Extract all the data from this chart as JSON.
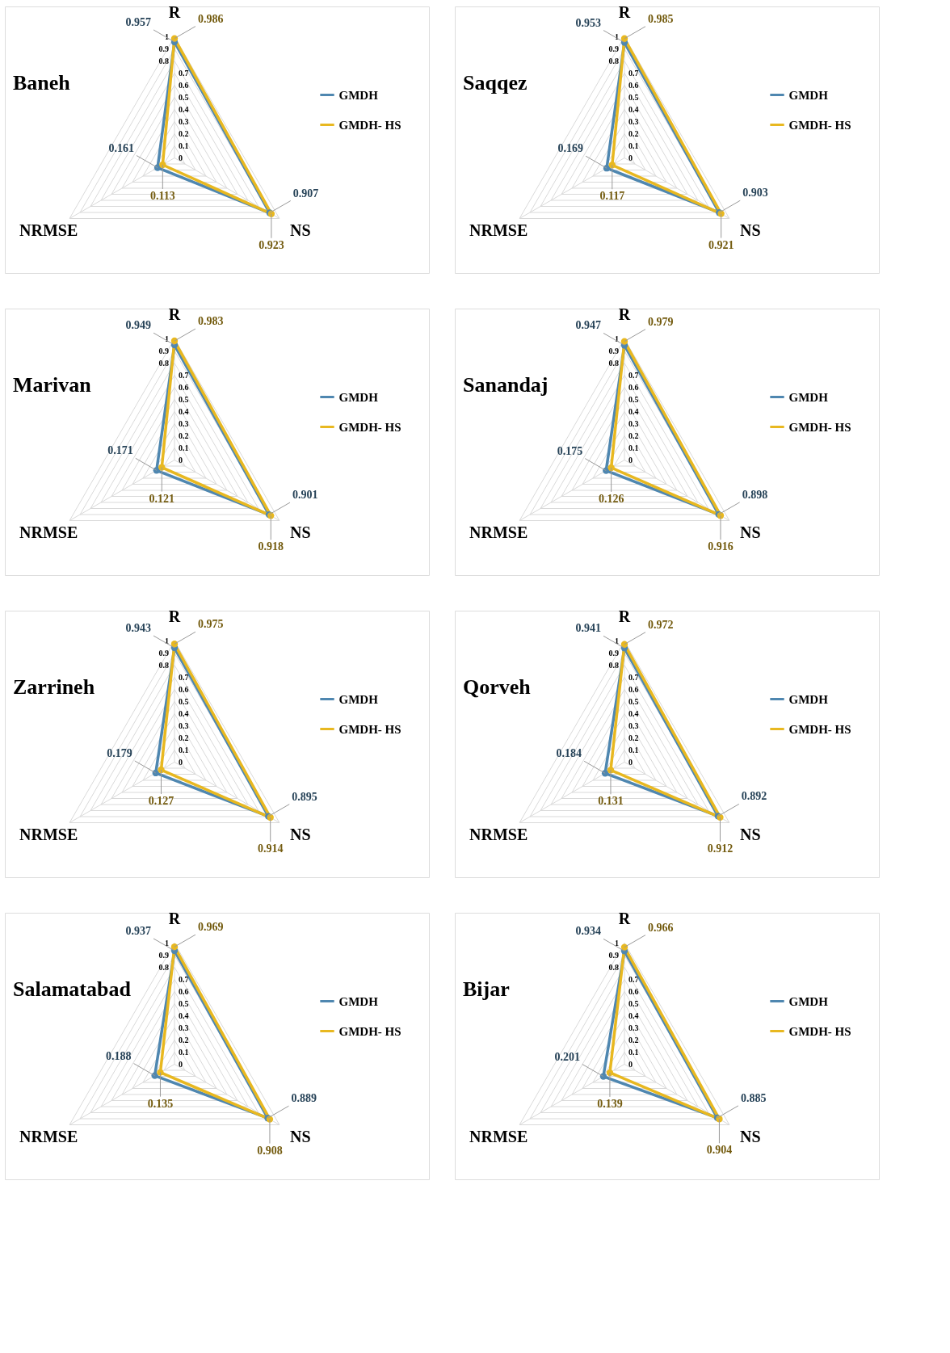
{
  "chart_data": [
    {
      "type": "radar",
      "title": "Baneh",
      "categories": [
        "R",
        "NS",
        "NRMSE"
      ],
      "ylim": [
        0,
        1
      ],
      "yticks": [
        0,
        0.1,
        0.2,
        0.3,
        0.4,
        0.5,
        0.6,
        0.7,
        0.8,
        0.9,
        1
      ],
      "grid": true,
      "legend": "right",
      "marker": "circle",
      "data_labels": true,
      "series": [
        {
          "name": "GMDH",
          "color": "#4f87b0",
          "values": [
            0.957,
            0.907,
            0.161
          ]
        },
        {
          "name": "GMDH- HS",
          "color": "#e8b820",
          "values": [
            0.986,
            0.923,
            0.113
          ]
        }
      ]
    },
    {
      "type": "radar",
      "title": "Saqqez",
      "categories": [
        "R",
        "NS",
        "NRMSE"
      ],
      "ylim": [
        0,
        1
      ],
      "yticks": [
        0,
        0.1,
        0.2,
        0.3,
        0.4,
        0.5,
        0.6,
        0.7,
        0.8,
        0.9,
        1
      ],
      "grid": true,
      "legend": "right",
      "marker": "circle",
      "data_labels": true,
      "series": [
        {
          "name": "GMDH",
          "color": "#4f87b0",
          "values": [
            0.953,
            0.903,
            0.169
          ]
        },
        {
          "name": "GMDH- HS",
          "color": "#e8b820",
          "values": [
            0.985,
            0.921,
            0.117
          ]
        }
      ]
    },
    {
      "type": "radar",
      "title": "Marivan",
      "categories": [
        "R",
        "NS",
        "NRMSE"
      ],
      "ylim": [
        0,
        1
      ],
      "yticks": [
        0,
        0.1,
        0.2,
        0.3,
        0.4,
        0.5,
        0.6,
        0.7,
        0.8,
        0.9,
        1
      ],
      "grid": true,
      "legend": "right",
      "marker": "circle",
      "data_labels": true,
      "series": [
        {
          "name": "GMDH",
          "color": "#4f87b0",
          "values": [
            0.949,
            0.901,
            0.171
          ]
        },
        {
          "name": "GMDH- HS",
          "color": "#e8b820",
          "values": [
            0.983,
            0.918,
            0.121
          ]
        }
      ]
    },
    {
      "type": "radar",
      "title": "Sanandaj",
      "categories": [
        "R",
        "NS",
        "NRMSE"
      ],
      "ylim": [
        0,
        1
      ],
      "yticks": [
        0,
        0.1,
        0.2,
        0.3,
        0.4,
        0.5,
        0.6,
        0.7,
        0.8,
        0.9,
        1
      ],
      "grid": true,
      "legend": "right",
      "marker": "circle",
      "data_labels": true,
      "series": [
        {
          "name": "GMDH",
          "color": "#4f87b0",
          "values": [
            0.947,
            0.898,
            0.175
          ]
        },
        {
          "name": "GMDH- HS",
          "color": "#e8b820",
          "values": [
            0.979,
            0.916,
            0.126
          ]
        }
      ]
    },
    {
      "type": "radar",
      "title": "Zarrineh",
      "categories": [
        "R",
        "NS",
        "NRMSE"
      ],
      "ylim": [
        0,
        1
      ],
      "yticks": [
        0,
        0.1,
        0.2,
        0.3,
        0.4,
        0.5,
        0.6,
        0.7,
        0.8,
        0.9,
        1
      ],
      "grid": true,
      "legend": "right",
      "marker": "circle",
      "data_labels": true,
      "series": [
        {
          "name": "GMDH",
          "color": "#4f87b0",
          "values": [
            0.943,
            0.895,
            0.179
          ]
        },
        {
          "name": "GMDH- HS",
          "color": "#e8b820",
          "values": [
            0.975,
            0.914,
            0.127
          ]
        }
      ]
    },
    {
      "type": "radar",
      "title": "Qorveh",
      "categories": [
        "R",
        "NS",
        "NRMSE"
      ],
      "ylim": [
        0,
        1
      ],
      "yticks": [
        0,
        0.1,
        0.2,
        0.3,
        0.4,
        0.5,
        0.6,
        0.7,
        0.8,
        0.9,
        1
      ],
      "grid": true,
      "legend": "right",
      "marker": "circle",
      "data_labels": true,
      "series": [
        {
          "name": "GMDH",
          "color": "#4f87b0",
          "values": [
            0.941,
            0.892,
            0.184
          ]
        },
        {
          "name": "GMDH- HS",
          "color": "#e8b820",
          "values": [
            0.972,
            0.912,
            0.131
          ]
        }
      ]
    },
    {
      "type": "radar",
      "title": "Salamatabad",
      "categories": [
        "R",
        "NS",
        "NRMSE"
      ],
      "ylim": [
        0,
        1
      ],
      "yticks": [
        0,
        0.1,
        0.2,
        0.3,
        0.4,
        0.5,
        0.6,
        0.7,
        0.8,
        0.9,
        1
      ],
      "grid": true,
      "legend": "right",
      "marker": "circle",
      "data_labels": true,
      "series": [
        {
          "name": "GMDH",
          "color": "#4f87b0",
          "values": [
            0.937,
            0.889,
            0.188
          ]
        },
        {
          "name": "GMDH- HS",
          "color": "#e8b820",
          "values": [
            0.969,
            0.908,
            0.135
          ]
        }
      ]
    },
    {
      "type": "radar",
      "title": "Bijar",
      "categories": [
        "R",
        "NS",
        "NRMSE"
      ],
      "ylim": [
        0,
        1
      ],
      "yticks": [
        0,
        0.1,
        0.2,
        0.3,
        0.4,
        0.5,
        0.6,
        0.7,
        0.8,
        0.9,
        1
      ],
      "grid": true,
      "legend": "right",
      "marker": "circle",
      "data_labels": true,
      "series": [
        {
          "name": "GMDH",
          "color": "#4f87b0",
          "values": [
            0.934,
            0.885,
            0.201
          ]
        },
        {
          "name": "GMDH- HS",
          "color": "#e8b820",
          "values": [
            0.966,
            0.904,
            0.139
          ]
        }
      ]
    }
  ]
}
